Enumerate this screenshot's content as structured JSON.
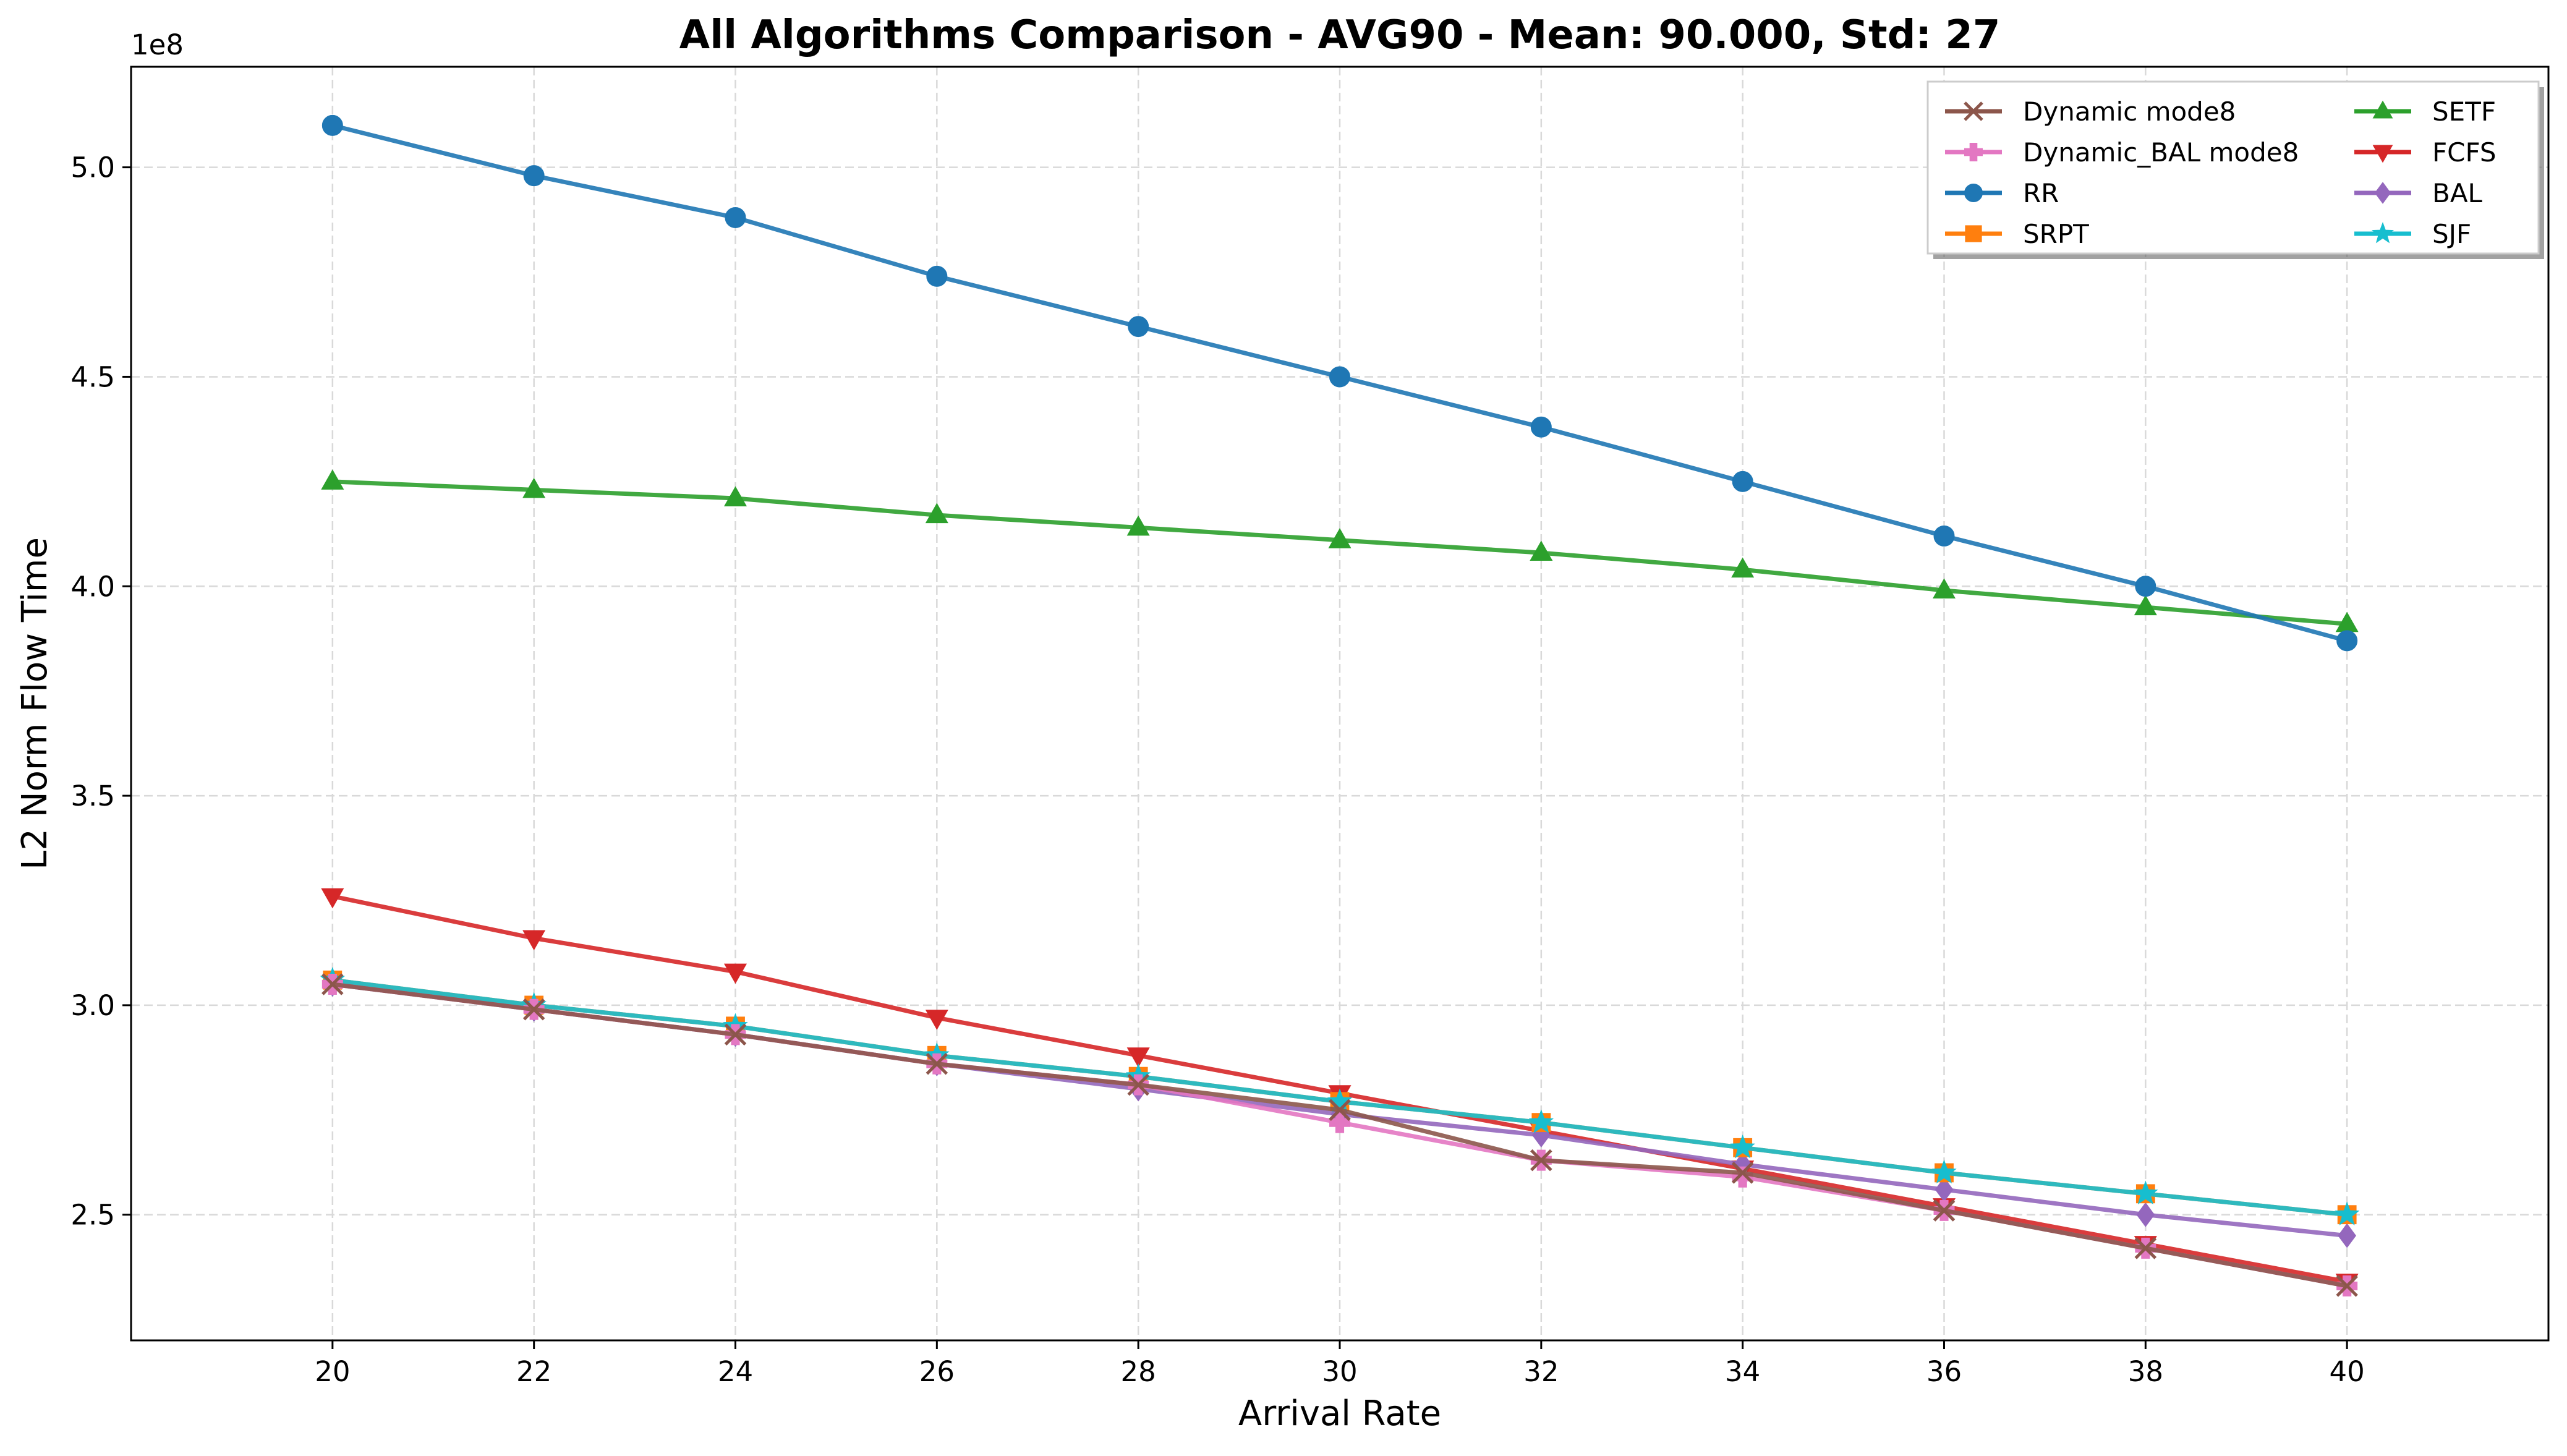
{
  "chart_data": {
    "type": "line",
    "title": "All Algorithms Comparison - AVG90 - Mean: 90.000, Std: 27",
    "xlabel": "Arrival Rate",
    "ylabel": "L2 Norm Flow Time",
    "y_offset_label": "1e8",
    "y_scale_factor": 100000000,
    "xlim": [
      18,
      42
    ],
    "ylim": [
      2.2,
      5.24
    ],
    "x_ticks": [
      20,
      22,
      24,
      26,
      28,
      30,
      32,
      34,
      36,
      38,
      40
    ],
    "y_ticks": [
      2.5,
      3.0,
      3.5,
      4.0,
      4.5,
      5.0
    ],
    "grid": true,
    "legend_position": "top-right",
    "x": [
      20,
      22,
      24,
      26,
      28,
      30,
      32,
      34,
      36,
      38,
      40
    ],
    "series": [
      {
        "name": "Dynamic mode8",
        "color": "#8c564b",
        "marker": "x",
        "values": [
          3.05,
          2.99,
          2.93,
          2.86,
          2.81,
          2.75,
          2.63,
          2.6,
          2.51,
          2.42,
          2.33
        ]
      },
      {
        "name": "Dynamic_BAL mode8",
        "color": "#e377c2",
        "marker": "plus-filled",
        "values": [
          3.05,
          2.99,
          2.93,
          2.86,
          2.81,
          2.72,
          2.63,
          2.59,
          2.51,
          2.42,
          2.33
        ]
      },
      {
        "name": "RR",
        "color": "#1f77b4",
        "marker": "circle",
        "values": [
          5.1,
          4.98,
          4.88,
          4.74,
          4.62,
          4.5,
          4.38,
          4.25,
          4.12,
          4.0,
          3.87
        ]
      },
      {
        "name": "SRPT",
        "color": "#ff7f0e",
        "marker": "square",
        "values": [
          3.06,
          3.0,
          2.95,
          2.88,
          2.83,
          2.77,
          2.72,
          2.66,
          2.6,
          2.55,
          2.5
        ]
      },
      {
        "name": "SETF",
        "color": "#2ca02c",
        "marker": "triangle-up",
        "values": [
          4.25,
          4.23,
          4.21,
          4.17,
          4.14,
          4.11,
          4.08,
          4.04,
          3.99,
          3.95,
          3.91
        ]
      },
      {
        "name": "FCFS",
        "color": "#d62728",
        "marker": "triangle-down",
        "values": [
          3.26,
          3.16,
          3.08,
          2.97,
          2.88,
          2.79,
          2.7,
          2.61,
          2.52,
          2.43,
          2.34
        ]
      },
      {
        "name": "BAL",
        "color": "#9467bd",
        "marker": "diamond",
        "values": [
          3.05,
          2.99,
          2.93,
          2.86,
          2.8,
          2.74,
          2.69,
          2.62,
          2.56,
          2.5,
          2.45
        ]
      },
      {
        "name": "SJF",
        "color": "#17becf",
        "marker": "star",
        "values": [
          3.06,
          3.0,
          2.95,
          2.88,
          2.83,
          2.77,
          2.72,
          2.66,
          2.6,
          2.55,
          2.5
        ]
      }
    ]
  }
}
